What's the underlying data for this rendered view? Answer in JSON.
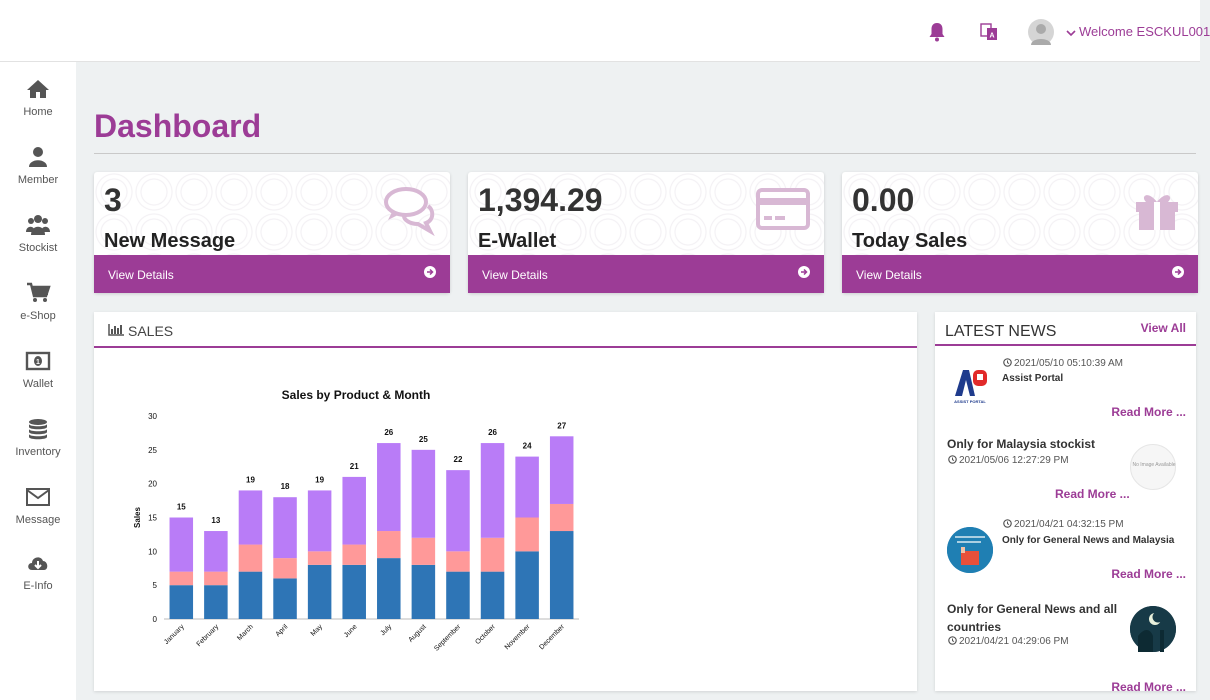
{
  "topbar": {
    "welcome": "Welcome ESCKUL001",
    "icons": [
      "bell-icon",
      "language-icon",
      "user-avatar",
      "chevron-down-icon"
    ]
  },
  "sidebar": {
    "items": [
      {
        "label": "Home",
        "icon": "home-icon"
      },
      {
        "label": "Member",
        "icon": "user-icon"
      },
      {
        "label": "Stockist",
        "icon": "users-group-icon"
      },
      {
        "label": "e-Shop",
        "icon": "cart-icon"
      },
      {
        "label": "Wallet",
        "icon": "money-icon"
      },
      {
        "label": "Inventory",
        "icon": "database-icon"
      },
      {
        "label": "Message",
        "icon": "envelope-icon"
      },
      {
        "label": "E-Info",
        "icon": "cloud-download-icon"
      }
    ]
  },
  "page": {
    "title": "Dashboard"
  },
  "cards": [
    {
      "value": "3",
      "name": "New Message",
      "link": "View Details",
      "icon": "comments-icon"
    },
    {
      "value": "1,394.29",
      "name": "E-Wallet",
      "link": "View Details",
      "icon": "credit-card-icon"
    },
    {
      "value": "0.00",
      "name": "Today Sales",
      "link": "View Details",
      "icon": "gift-icon"
    }
  ],
  "sales": {
    "heading": "SALES",
    "chart_data": {
      "type": "bar",
      "stacked": true,
      "title": "Sales by Product & Month",
      "xlabel": "",
      "ylabel": "Sales",
      "ylim": [
        0,
        30
      ],
      "yticks": [
        0,
        5,
        10,
        15,
        20,
        25,
        30
      ],
      "grid": false,
      "categories": [
        "January",
        "February",
        "March",
        "April",
        "May",
        "June",
        "July",
        "August",
        "September",
        "October",
        "November",
        "December"
      ],
      "series": [
        {
          "values": [
            5,
            5,
            7,
            6,
            8,
            8,
            9,
            8,
            7,
            7,
            10,
            13
          ],
          "color": "#2e75b6"
        },
        {
          "values": [
            2,
            2,
            4,
            3,
            2,
            3,
            4,
            4,
            3,
            5,
            5,
            4
          ],
          "color": "#ff9999"
        },
        {
          "values": [
            8,
            6,
            8,
            9,
            9,
            10,
            13,
            13,
            12,
            14,
            9,
            10
          ],
          "color": "#b97cf7"
        }
      ],
      "totals": [
        15,
        13,
        19,
        18,
        19,
        21,
        26,
        25,
        22,
        26,
        24,
        27
      ]
    }
  },
  "news": {
    "heading": "LATEST NEWS",
    "view_all": "View All",
    "items": [
      {
        "date": "2021/05/10 05:10:39 AM",
        "title": "Assist Portal",
        "more": "Read More ...",
        "thumb": "assist-portal-logo",
        "thumb_text": "ASSIST PORTAL"
      },
      {
        "date": "2021/05/06 12:27:29 PM",
        "title": "Only for Malaysia stockist",
        "more": "Read More ...",
        "thumb": "no-image",
        "thumb_text": "No Image Available"
      },
      {
        "date": "2021/04/21 04:32:15 PM",
        "title": "Only for General News and Malaysia",
        "more": "Read More ...",
        "thumb": "terms-conditions-image"
      },
      {
        "date": "2021/04/21 04:29:06 PM",
        "title": "Only for General News and all countries",
        "more": "Read More ...",
        "thumb": "mosque-night-image"
      }
    ]
  }
}
